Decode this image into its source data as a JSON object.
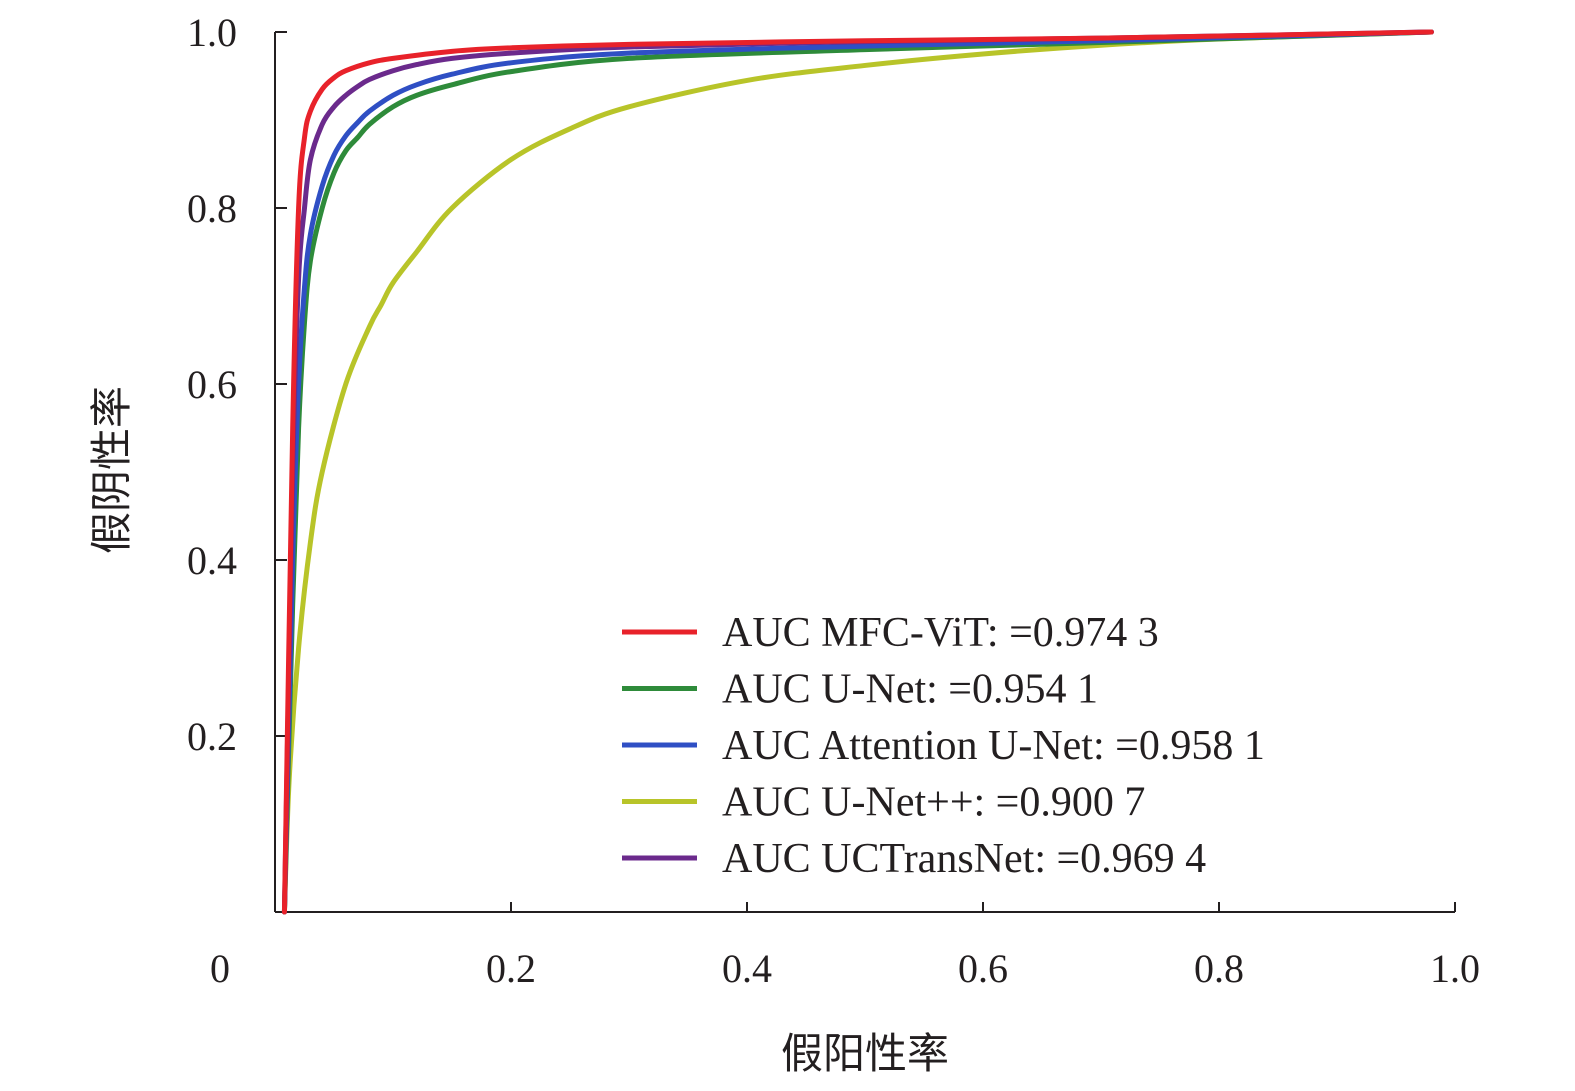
{
  "chart_data": {
    "type": "line",
    "xlabel": "假阳性率",
    "ylabel": "假阴性率",
    "xlim": [
      0,
      1.0
    ],
    "ylim": [
      0,
      1.0
    ],
    "x_ticks": [
      "0",
      "0.2",
      "0.4",
      "0.6",
      "0.8",
      "1.0"
    ],
    "y_ticks": [
      "0.2",
      "0.4",
      "0.6",
      "0.8",
      "1.0"
    ],
    "grid": false,
    "legend_position": "bottom-right",
    "series": [
      {
        "name": "AUC MFC-ViT: =0.974 3",
        "color": "#e8222a",
        "x": [
          0.008,
          0.015,
          0.02,
          0.025,
          0.03,
          0.04,
          0.05,
          0.06,
          0.08,
          0.1,
          0.15,
          0.2,
          0.3,
          0.5,
          0.7,
          0.98
        ],
        "y": [
          0.0,
          0.55,
          0.8,
          0.88,
          0.91,
          0.935,
          0.948,
          0.956,
          0.965,
          0.97,
          0.978,
          0.982,
          0.986,
          0.99,
          0.993,
          1.0
        ]
      },
      {
        "name": "AUC U-Net: =0.954 1",
        "color": "#2e8b3a",
        "x": [
          0.008,
          0.015,
          0.02,
          0.025,
          0.03,
          0.04,
          0.05,
          0.06,
          0.07,
          0.08,
          0.1,
          0.12,
          0.15,
          0.2,
          0.3,
          0.5,
          0.7,
          0.98
        ],
        "y": [
          0.0,
          0.35,
          0.55,
          0.67,
          0.74,
          0.8,
          0.84,
          0.865,
          0.88,
          0.895,
          0.915,
          0.928,
          0.94,
          0.955,
          0.97,
          0.98,
          0.988,
          1.0
        ]
      },
      {
        "name": "AUC Attention U-Net: =0.958 1",
        "color": "#2f4fc4",
        "x": [
          0.008,
          0.015,
          0.02,
          0.025,
          0.03,
          0.04,
          0.05,
          0.06,
          0.07,
          0.08,
          0.1,
          0.12,
          0.15,
          0.2,
          0.3,
          0.5,
          0.7,
          0.98
        ],
        "y": [
          0.0,
          0.4,
          0.6,
          0.71,
          0.77,
          0.825,
          0.86,
          0.882,
          0.897,
          0.91,
          0.928,
          0.94,
          0.952,
          0.965,
          0.976,
          0.984,
          0.99,
          1.0
        ]
      },
      {
        "name": "AUC U-Net++: =0.900 7",
        "color": "#b8c429",
        "x": [
          0.008,
          0.012,
          0.02,
          0.03,
          0.04,
          0.06,
          0.08,
          0.09,
          0.1,
          0.12,
          0.15,
          0.2,
          0.25,
          0.3,
          0.4,
          0.5,
          0.6,
          0.7,
          0.8,
          0.98
        ],
        "y": [
          0.0,
          0.15,
          0.3,
          0.42,
          0.5,
          0.6,
          0.665,
          0.69,
          0.715,
          0.75,
          0.8,
          0.855,
          0.89,
          0.915,
          0.945,
          0.962,
          0.975,
          0.985,
          0.992,
          1.0
        ]
      },
      {
        "name": "AUC UCTransNet: =0.969 4",
        "color": "#6b2a8c",
        "x": [
          0.008,
          0.015,
          0.02,
          0.025,
          0.03,
          0.04,
          0.05,
          0.06,
          0.07,
          0.08,
          0.1,
          0.12,
          0.15,
          0.2,
          0.3,
          0.5,
          0.7,
          0.98
        ],
        "y": [
          0.0,
          0.5,
          0.72,
          0.8,
          0.855,
          0.895,
          0.915,
          0.928,
          0.938,
          0.946,
          0.956,
          0.963,
          0.97,
          0.976,
          0.983,
          0.989,
          0.993,
          1.0
        ]
      }
    ]
  }
}
